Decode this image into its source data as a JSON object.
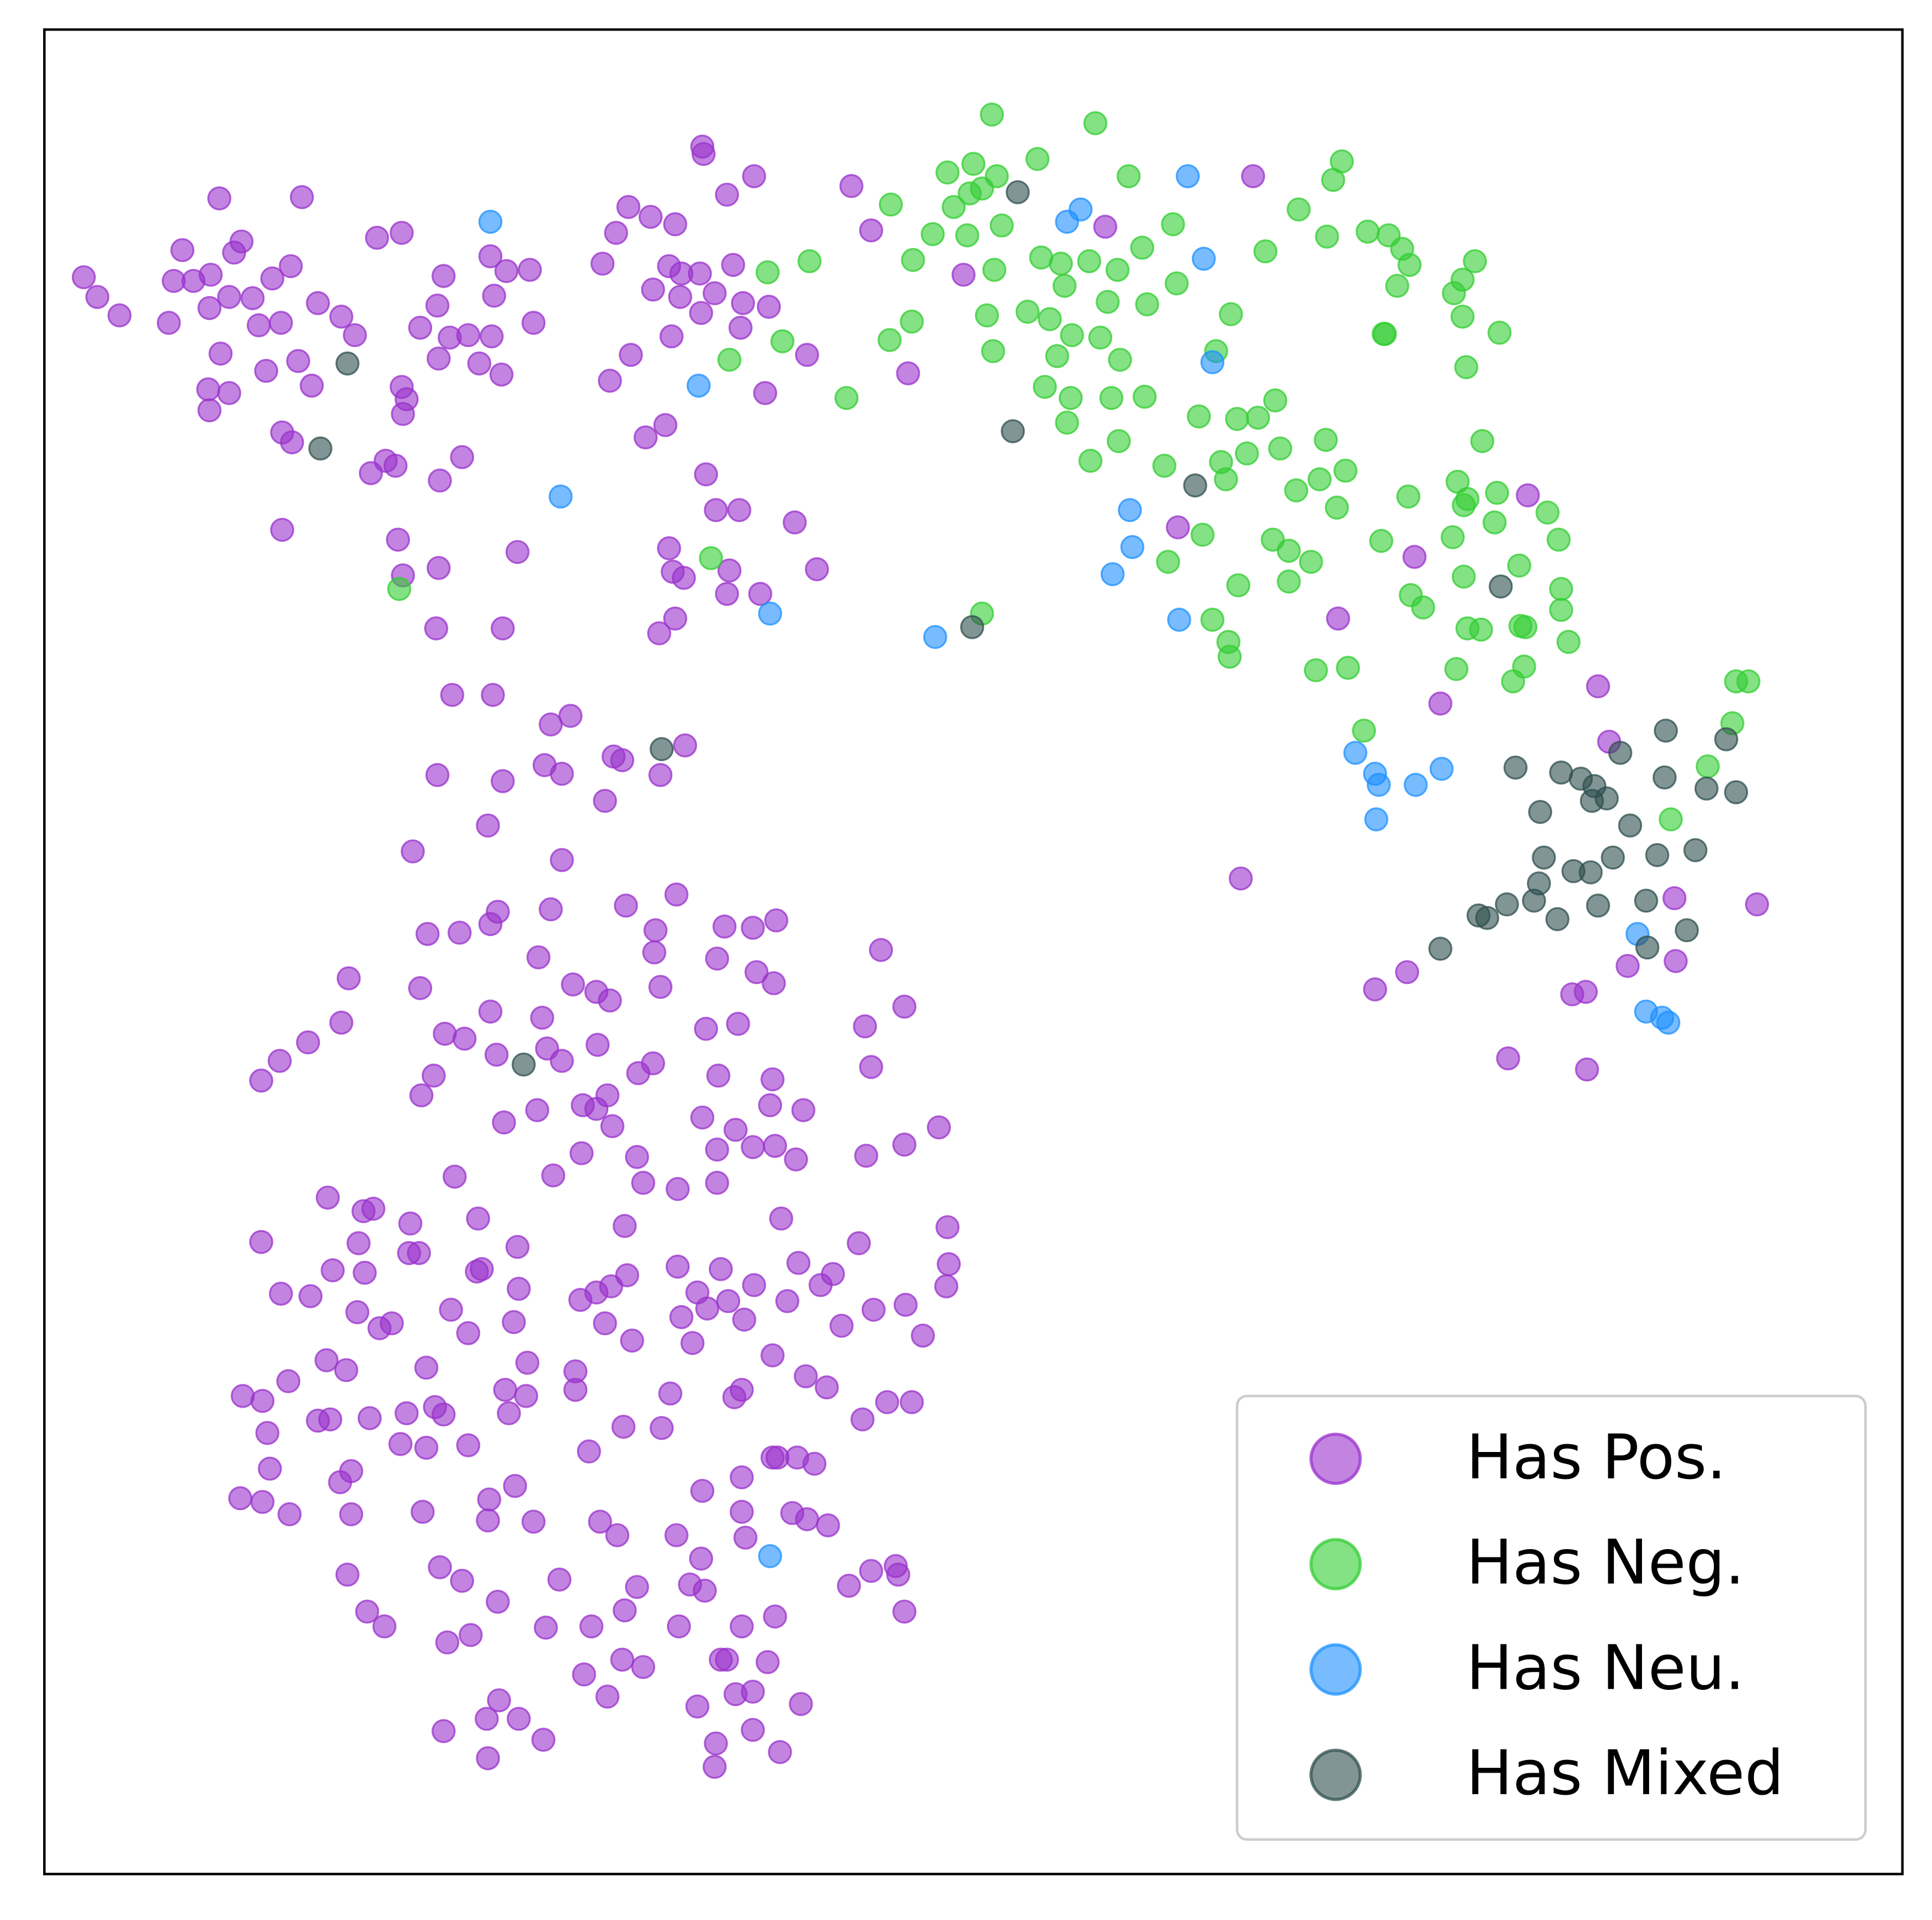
{
  "chart_data": {
    "type": "scatter",
    "xlim": [
      36,
      1544
    ],
    "ylim": [
      1521,
      24
    ],
    "xticks": [],
    "yticks": [],
    "grid": false,
    "legend": "lower right",
    "series": [
      {
        "name": "Has Pos.",
        "color": "#9932CC",
        "x": [
          178,
          245,
          148,
          196,
          190,
          68,
          79,
          97,
          141,
          157,
          171,
          186,
          205,
          221,
          236,
          170,
          137,
          210,
          228,
          258,
          277,
          288,
          179,
          216,
          242,
          253,
          169,
          186,
          170,
          229,
          237,
          229,
          306,
          326,
          360,
          355,
          341,
          365,
          380,
          399,
          356,
          389,
          407,
          398,
          411,
          430,
          401,
          433,
          326,
          330,
          327,
          301,
          313,
          321,
          357,
          375,
          323,
          356,
          327,
          420,
          354,
          408,
          570,
          571,
          612,
          590,
          510,
          528,
          500,
          548,
          489,
          543,
          553,
          568,
          595,
          530,
          552,
          580,
          603,
          624,
          569,
          601,
          545,
          512,
          495,
          621,
          655,
          540,
          524,
          573,
          581,
          600,
          645,
          543,
          546,
          555,
          592,
          617,
          590,
          663,
          548,
          535,
          691,
          707,
          737,
          782,
          897,
          1017,
          956,
          1148,
          1086,
          1169,
          1240,
          1297,
          1306,
          1007,
          1116,
          1142,
          1224,
          1288,
          1276,
          1287,
          1321,
          1360,
          1359,
          1426,
          367,
          400,
          447,
          463,
          355,
          408,
          442,
          456,
          498,
          505,
          556,
          536,
          491,
          396,
          335,
          456,
          347,
          373,
          398,
          404,
          447,
          508,
          549,
          532,
          588,
          611,
          630,
          715,
          531,
          437,
          582,
          283,
          341,
          465,
          484,
          495,
          536,
          614,
          628,
          277,
          250,
          227,
          212,
          361,
          377,
          398,
          440,
          403,
          444,
          456,
          485,
          530,
          518,
          573,
          599,
          702,
          734,
          707,
          342,
          352,
          409,
          436,
          473,
          493,
          484,
          497,
          570,
          583,
          627,
          625,
          652,
          597,
          582,
          629,
          611,
          646,
          703,
          734,
          762,
          517,
          472,
          449,
          369,
          522,
          550,
          582,
          266,
          295,
          303,
          333,
          388,
          212,
          291,
          332,
          340,
          420,
          507,
          634,
          697,
          769,
          270,
          228,
          252,
          296,
          387,
          391,
          421,
          471,
          484,
          496,
          509,
          550,
          585,
          566,
          591,
          612,
          648,
          666,
          676,
          639,
          709,
          770,
          768,
          735,
          749,
          290,
          318,
          308,
          366,
          380,
          417,
          491,
          553,
          574,
          604,
          513,
          562,
          683,
          265,
          281,
          234,
          346,
          428,
          467,
          627,
          654,
          197,
          213,
          217,
          258,
          268,
          300,
          330,
          353,
          360,
          410,
          427,
          467,
          413,
          544,
          596,
          602,
          671,
          720,
          740,
          700,
          325,
          346,
          380,
          506,
          537,
          478,
          219,
          285,
          276,
          195,
          213,
          235,
          285,
          343,
          397,
          418,
          396,
          433,
          487,
          501,
          570,
          602,
          627,
          631,
          647,
          661,
          602,
          643,
          672,
          655,
          549,
          605,
          569,
          282,
          357,
          375,
          404,
          454,
          517,
          507,
          480,
          560,
          572,
          551,
          602,
          629,
          689,
          707,
          727,
          729,
          734,
          298,
          312,
          363,
          382,
          443,
          474,
          493,
          505,
          522,
          585,
          590,
          623,
          611,
          566,
          597,
          650,
          405,
          395,
          421,
          441,
          360,
          396,
          581,
          580,
          611,
          633
        ],
        "y": [
          161,
          160,
          203,
          196,
          205,
          225,
          241,
          256,
          228,
          228,
          223,
          241,
          242,
          226,
          216,
          250,
          262,
          264,
          262,
          246,
          257,
          272,
          287,
          301,
          293,
          313,
          316,
          319,
          333,
          351,
          359,
          430,
          193,
          189,
          224,
          248,
          266,
          274,
          272,
          273,
          291,
          295,
          304,
          208,
          220,
          219,
          240,
          262,
          314,
          324,
          336,
          384,
          374,
          378,
          390,
          371,
          438,
          461,
          467,
          448,
          510,
          510,
          119,
          125,
          143,
          158,
          168,
          176,
          189,
          182,
          214,
          216,
          222,
          222,
          215,
          235,
          241,
          238,
          246,
          249,
          254,
          266,
          273,
          288,
          309,
          319,
          288,
          345,
          355,
          385,
          414,
          414,
          424,
          445,
          464,
          469,
          463,
          482,
          482,
          462,
          502,
          514,
          151,
          187,
          303,
          223,
          184,
          143,
          428,
          452,
          502,
          571,
          402,
          557,
          602,
          713,
          803,
          789,
          859,
          868,
          807,
          805,
          784,
          780,
          729,
          734,
          564,
          564,
          588,
          581,
          629,
          634,
          621,
          628,
          614,
          617,
          605,
          629,
          650,
          670,
          691,
          698,
          758,
          757,
          750,
          740,
          738,
          735,
          726,
          755,
          752,
          753,
          747,
          771,
          773,
          777,
          778,
          794,
          802,
          799,
          805,
          812,
          801,
          789,
          798,
          830,
          846,
          861,
          877,
          839,
          843,
          821,
          826,
          856,
          851,
          861,
          848,
          863,
          871,
          835,
          831,
          833,
          817,
          866,
          889,
          873,
          911,
          901,
          897,
          889,
          900,
          914,
          907,
          873,
          876,
          897,
          901,
          917,
          933,
          930,
          931,
          941,
          938,
          929,
          915,
          939,
          936,
          954,
          955,
          960,
          965,
          960,
          972,
          983,
          981,
          993,
          989,
          1008,
          1009,
          1017,
          1017,
          1012,
          995,
          989,
          1009,
          996,
          1031,
          1050,
          1052,
          1033,
          1032,
          1030,
          1046,
          1055,
          1049,
          1044,
          1035,
          1028,
          1030,
          1049,
          1056,
          1043,
          1025,
          1043,
          1034,
          1056,
          1063,
          1026,
          1044,
          1059,
          1084,
          1065,
          1074,
          1078,
          1063,
          1082,
          1073,
          1074,
          1069,
          1062,
          1071,
          1088,
          1090,
          1076,
          1104,
          1112,
          1121,
          1110,
          1106,
          1113,
          1100,
          1117,
          1133,
          1137,
          1163,
          1153,
          1152,
          1151,
          1147,
          1142,
          1148,
          1128,
          1133,
          1128,
          1147,
          1131,
          1134,
          1128,
          1126,
          1138,
          1138,
          1152,
          1172,
          1175,
          1173,
          1158,
          1159,
          1178,
          1192,
          1194,
          1203,
          1216,
          1219,
          1229,
          1229,
          1227,
          1217,
          1206,
          1234,
          1235,
          1235,
          1246,
          1210,
          1199,
          1183,
          1183,
          1183,
          1188,
          1227,
          1228,
          1238,
          1233,
          1246,
          1248,
          1265,
          1278,
          1272,
          1283,
          1300,
          1282,
          1288,
          1307,
          1320,
          1286,
          1291,
          1320,
          1320,
          1312,
          1287,
          1275,
          1271,
          1278,
          1308,
          1308,
          1320,
          1333,
          1327,
          1321,
          1359,
          1377,
          1347,
          1353,
          1347,
          1347,
          1349,
          1373,
          1385,
          1375,
          1383,
          1380,
          1395,
          1395,
          1412,
          1405,
          1427,
          1415,
          1434,
          1404,
          1422
        ]
      },
      {
        "name": "Has Neg.",
        "color": "#32CD32",
        "x": [
          805,
          889,
          769,
          790,
          809,
          842,
          916,
          1089,
          1082,
          723,
          774,
          787,
          797,
          813,
          757,
          785,
          741,
          807,
          845,
          861,
          884,
          907,
          927,
          952,
          1054,
          1077,
          1110,
          1127,
          1138,
          1144,
          1027,
          955,
          864,
          899,
          931,
          801,
          834,
          852,
          870,
          893,
          740,
          722,
          806,
          858,
          909,
          987,
          999,
          1134,
          1197,
          1187,
          1180,
          1187,
          1123,
          1124,
          1217,
          1190,
          848,
          869,
          902,
          929,
          1035,
          973,
          1004,
          1021,
          866,
          908,
          885,
          945,
          991,
          1012,
          995,
          1039,
          1076,
          1203,
          1052,
          1071,
          1092,
          1085,
          1143,
          1183,
          1188,
          1191,
          1215,
          1256,
          976,
          948,
          1033,
          1046,
          1064,
          1121,
          1179,
          1213,
          1265,
          1005,
          1046,
          1233,
          1188,
          1145,
          1155,
          1267,
          1267,
          984,
          997,
          998,
          1191,
          1202,
          1234,
          1238,
          1273,
          1068,
          1094,
          1182,
          1237,
          1228,
          1409,
          1419,
          1406,
          1107,
          1386,
          1356,
          623,
          657,
          592,
          635,
          687,
          577,
          324,
          797
        ],
        "y": [
          93,
          100,
          140,
          133,
          143,
          129,
          143,
          131,
          146,
          166,
          168,
          157,
          153,
          183,
          190,
          191,
          211,
          219,
          209,
          214,
          212,
          219,
          201,
          182,
          170,
          192,
          188,
          191,
          202,
          215,
          204,
          230,
          232,
          245,
          247,
          256,
          253,
          259,
          272,
          274,
          261,
          276,
          285,
          289,
          292,
          285,
          255,
          232,
          212,
          227,
          238,
          257,
          271,
          271,
          270,
          298,
          314,
          323,
          323,
          322,
          325,
          338,
          340,
          339,
          343,
          358,
          374,
          378,
          375,
          368,
          389,
          364,
          357,
          358,
          398,
          389,
          382,
          412,
          403,
          391,
          410,
          405,
          400,
          416,
          434,
          456,
          438,
          447,
          456,
          439,
          436,
          424,
          438,
          475,
          472,
          459,
          468,
          483,
          493,
          478,
          495,
          503,
          521,
          533,
          510,
          511,
          508,
          509,
          521,
          544,
          542,
          543,
          541,
          553,
          553,
          553,
          587,
          593,
          622,
          665,
          221,
          212,
          292,
          277,
          323,
          453,
          478,
          498
        ]
      },
      {
        "name": "Has Neu.",
        "color": "#1E90FF",
        "x": [
          398,
          964,
          877,
          866,
          977,
          984,
          567,
          455,
          917,
          919,
          903,
          957,
          625,
          759,
          1100,
          1116,
          1119,
          1149,
          1170,
          1117,
          1329,
          1336,
          1349,
          1354,
          625
        ],
        "y": [
          180,
          143,
          170,
          180,
          210,
          294,
          313,
          403,
          414,
          444,
          466,
          503,
          498,
          517,
          611,
          628,
          637,
          637,
          624,
          665,
          758,
          821,
          826,
          830,
          1263
        ]
      },
      {
        "name": "Has Mixed",
        "color": "#2F4F4F",
        "x": [
          826,
          282,
          260,
          822,
          970,
          1218,
          789,
          537,
          425,
          1352,
          1401,
          1315,
          1230,
          1267,
          1283,
          1294,
          1351,
          1385,
          1409,
          1292,
          1304,
          1250,
          1323,
          1253,
          1309,
          1345,
          1376,
          1277,
          1291,
          1249,
          1223,
          1245,
          1297,
          1336,
          1200,
          1207,
          1264,
          1369,
          1337,
          1169
        ],
        "y": [
          156,
          295,
          364,
          350,
          394,
          476,
          509,
          608,
          864,
          593,
          600,
          611,
          623,
          627,
          632,
          638,
          631,
          640,
          643,
          650,
          648,
          659,
          670,
          696,
          696,
          694,
          690,
          707,
          708,
          717,
          734,
          731,
          735,
          731,
          743,
          745,
          746,
          755,
          769,
          770
        ]
      }
    ]
  }
}
